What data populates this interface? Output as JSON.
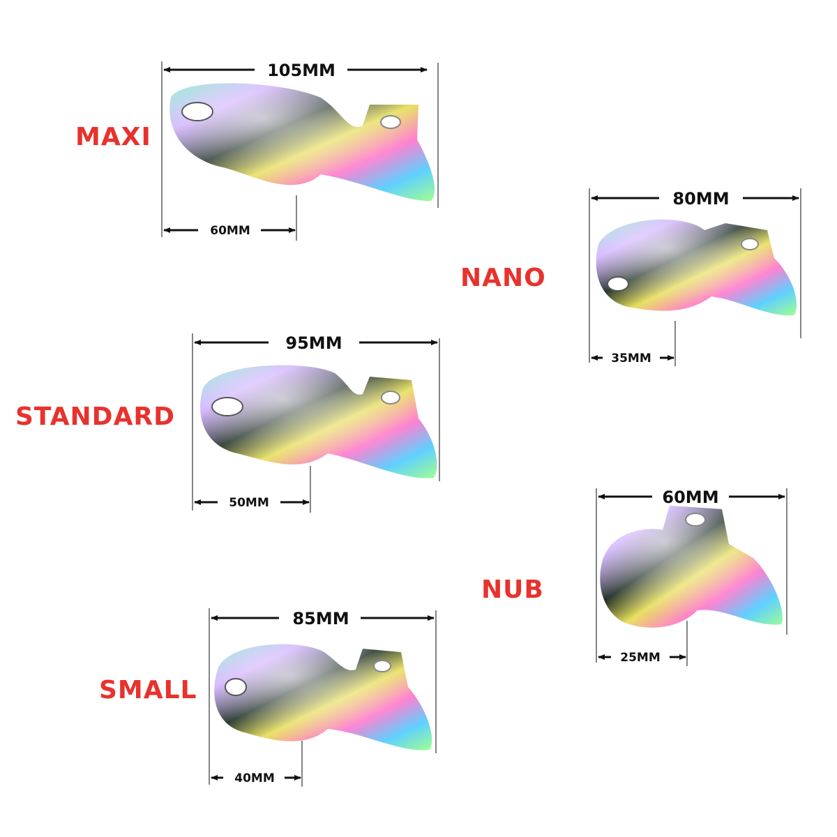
{
  "colors": {
    "label": "#e8322d",
    "dimension": "#111111",
    "background": "#ffffff"
  },
  "sizes": {
    "maxi": {
      "label": "MAXI",
      "length": "105MM",
      "opening": "60MM"
    },
    "nano": {
      "label": "NANO",
      "length": "80MM",
      "opening": "35MM"
    },
    "standard": {
      "label": "STANDARD",
      "length": "95MM",
      "opening": "50MM"
    },
    "nub": {
      "label": "NUB",
      "length": "60MM",
      "opening": "25MM"
    },
    "small": {
      "label": "SMALL",
      "length": "85MM",
      "opening": "40MM"
    }
  }
}
